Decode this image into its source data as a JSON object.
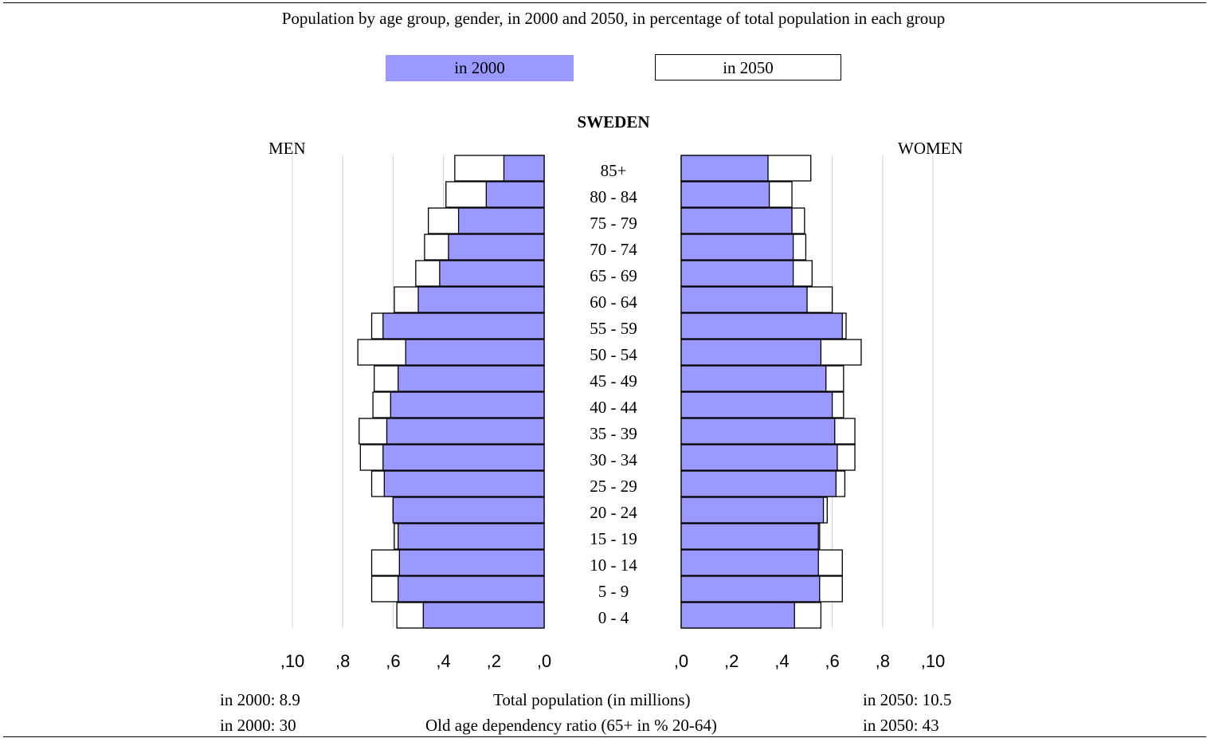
{
  "subtitle": "Population by age group, gender, in 2000 and 2050, in percentage of total population in each group",
  "legend": {
    "label_2000": "in 2000",
    "label_2050": "in 2050",
    "color_2000": "#9999ff",
    "color_2050": "#ffffff"
  },
  "footer": {
    "pop_2000": "in 2000: 8.9",
    "pop_label": "Total population (in millions)",
    "pop_2050": "in 2050: 10.5",
    "dep_2000": "in 2000: 30",
    "dep_label": "Old age dependency ratio (65+ in % 20-64)",
    "dep_2050": "in 2050: 43"
  },
  "chart_data": {
    "type": "bar",
    "title": "SWEDEN",
    "men_label": "MEN",
    "women_label": "WOMEN",
    "categories": [
      "85+",
      "80 - 84",
      "75 - 79",
      "70 - 74",
      "65 - 69",
      "60 - 64",
      "55 - 59",
      "50 - 54",
      "45 - 49",
      "40 - 44",
      "35 - 39",
      "30 - 34",
      "25 - 29",
      "20 - 24",
      "15 - 19",
      "10 - 14",
      "5 - 9",
      "0 - 4"
    ],
    "tick_labels": [
      ",10",
      ",8",
      ",6",
      ",4",
      ",2",
      ",0"
    ],
    "xlim": [
      0,
      10
    ],
    "series": [
      {
        "name": "in 2000",
        "gender": "men",
        "values": [
          1.6,
          2.3,
          3.4,
          3.8,
          4.15,
          5.0,
          6.4,
          5.5,
          5.8,
          6.1,
          6.25,
          6.4,
          6.35,
          6.0,
          5.8,
          5.75,
          5.8,
          4.8
        ]
      },
      {
        "name": "in 2050",
        "gender": "men",
        "values": [
          3.55,
          3.9,
          4.6,
          4.75,
          5.1,
          5.95,
          6.85,
          7.4,
          6.75,
          6.8,
          7.35,
          7.3,
          6.85,
          6.0,
          5.95,
          6.85,
          6.85,
          5.85
        ]
      },
      {
        "name": "in 2000",
        "gender": "women",
        "values": [
          3.45,
          3.5,
          4.4,
          4.45,
          4.45,
          5.0,
          6.4,
          5.55,
          5.75,
          6.0,
          6.1,
          6.2,
          6.15,
          5.65,
          5.45,
          5.45,
          5.5,
          4.5
        ]
      },
      {
        "name": "in 2050",
        "gender": "women",
        "values": [
          5.15,
          4.4,
          4.9,
          4.95,
          5.2,
          6.0,
          6.55,
          7.15,
          6.45,
          6.45,
          6.9,
          6.9,
          6.5,
          5.8,
          5.5,
          6.4,
          6.4,
          5.55
        ]
      }
    ],
    "grid": true
  }
}
